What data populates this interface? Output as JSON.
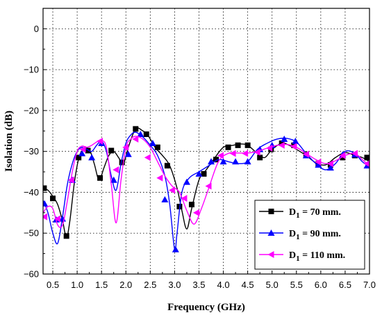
{
  "chart_data": {
    "type": "line",
    "xlabel": "Frequency (GHz)",
    "ylabel": "Isolation (dB)",
    "xlim": [
      0.3,
      7.0
    ],
    "ylim": [
      -60,
      5
    ],
    "xticks": [
      0.5,
      1.0,
      1.5,
      2.0,
      2.5,
      3.0,
      3.5,
      4.0,
      4.5,
      5.0,
      5.5,
      6.0,
      6.5,
      7.0
    ],
    "xtick_labels": [
      "0.5",
      "1.0",
      "1.5",
      "2.0",
      "2.5",
      "3.0",
      "3.5",
      "4.0",
      "4.5",
      "5.0",
      "5.5",
      "6.0",
      "6.5",
      "7.0"
    ],
    "yticks": [
      0,
      -10,
      -20,
      -30,
      -40,
      -50,
      -60
    ],
    "ytick_labels": [
      "0",
      "−10",
      "−20",
      "−30",
      "−40",
      "−50",
      "−60"
    ],
    "grid": true,
    "legend_position": "bottom-right",
    "series": [
      {
        "name": "D1 = 70 mm.",
        "name_main": "D",
        "name_sub": "1",
        "name_rest": " = 70 mm.",
        "color": "#000000",
        "marker": "square",
        "x": [
          0.3,
          0.4,
          0.5,
          0.6,
          0.7,
          0.78,
          0.85,
          0.95,
          1.05,
          1.15,
          1.25,
          1.35,
          1.45,
          1.55,
          1.65,
          1.75,
          1.85,
          1.95,
          2.05,
          2.2,
          2.35,
          2.45,
          2.6,
          2.75,
          2.9,
          3.05,
          3.15,
          3.25,
          3.35,
          3.5,
          3.65,
          3.8,
          4.0,
          4.2,
          4.35,
          4.5,
          4.7,
          4.85,
          5.0,
          5.2,
          5.35,
          5.5,
          5.7,
          5.9,
          6.1,
          6.3,
          6.5,
          6.7,
          6.85,
          7.0
        ],
        "y": [
          -39,
          -39.5,
          -41,
          -43,
          -47,
          -51,
          -47,
          -37,
          -31,
          -29.5,
          -29.5,
          -33,
          -37,
          -34,
          -31,
          -30,
          -31.5,
          -33,
          -29,
          -24.5,
          -25,
          -26,
          -29,
          -31,
          -33.5,
          -39,
          -44.5,
          -49,
          -44,
          -37,
          -34.5,
          -32,
          -29,
          -28.5,
          -28.2,
          -28.5,
          -30.5,
          -31.5,
          -29.5,
          -28,
          -28.5,
          -29.5,
          -31,
          -32.8,
          -33.3,
          -31.5,
          -30.3,
          -31,
          -31.5,
          -32.5
        ],
        "marker_x": [
          0.32,
          0.5,
          0.78,
          1.03,
          1.22,
          1.47,
          1.7,
          1.92,
          2.2,
          2.42,
          2.65,
          2.85,
          3.1,
          3.35,
          3.6,
          3.85,
          4.1,
          4.3,
          4.5,
          4.75,
          4.98,
          5.2,
          5.45,
          5.7,
          5.95,
          6.2,
          6.45,
          6.7,
          6.95
        ],
        "marker_y": [
          -39,
          -41.5,
          -50.7,
          -31.5,
          -29.8,
          -36.5,
          -29.8,
          -32.7,
          -24.5,
          -25.8,
          -29,
          -33.5,
          -43.5,
          -43,
          -35.5,
          -32,
          -29,
          -28.5,
          -28.5,
          -31.5,
          -29.5,
          -28,
          -28.5,
          -30.7,
          -33,
          -33.3,
          -31.5,
          -31,
          -31.5
        ]
      },
      {
        "name": "D1 = 90 mm.",
        "name_main": "D",
        "name_sub": "1",
        "name_rest": " = 90 mm.",
        "color": "#0000ff",
        "marker": "triangle-up",
        "x": [
          0.3,
          0.4,
          0.5,
          0.6,
          0.7,
          0.8,
          0.9,
          1.0,
          1.1,
          1.2,
          1.3,
          1.4,
          1.5,
          1.6,
          1.7,
          1.8,
          1.9,
          2.0,
          2.1,
          2.2,
          2.35,
          2.5,
          2.65,
          2.8,
          2.9,
          3.0,
          3.05,
          3.15,
          3.3,
          3.5,
          3.7,
          3.9,
          4.1,
          4.3,
          4.5,
          4.7,
          4.9,
          5.1,
          5.3,
          5.5,
          5.7,
          5.9,
          6.1,
          6.3,
          6.5,
          6.7,
          6.85,
          7.0
        ],
        "y": [
          -42,
          -45,
          -50,
          -52.5,
          -46,
          -38,
          -33,
          -30,
          -29,
          -29.5,
          -30,
          -28.5,
          -27.5,
          -30,
          -36,
          -39.5,
          -33,
          -28,
          -26,
          -25.3,
          -26.5,
          -28.5,
          -31,
          -36,
          -43,
          -54,
          -50,
          -40,
          -36.5,
          -35,
          -33.5,
          -32,
          -32.5,
          -33,
          -32.5,
          -29.5,
          -28,
          -27,
          -26.8,
          -27.7,
          -30.5,
          -33,
          -34.5,
          -33,
          -30,
          -30.5,
          -32.5,
          -33.7
        ],
        "marker_x": [
          0.33,
          0.57,
          0.7,
          0.9,
          1.1,
          1.3,
          1.5,
          1.75,
          2.05,
          2.3,
          2.55,
          2.8,
          3.02,
          3.25,
          3.5,
          3.75,
          4.0,
          4.25,
          4.5,
          4.75,
          5.0,
          5.25,
          5.48,
          5.7,
          5.95,
          6.2,
          6.45,
          6.7,
          6.95
        ],
        "marker_y": [
          -42.8,
          -46.7,
          -46.5,
          -37,
          -30.5,
          -31.5,
          -28,
          -37,
          -30.7,
          -25.8,
          -28,
          -41.8,
          -54,
          -37.5,
          -35.5,
          -32.5,
          -32.5,
          -32.5,
          -32.5,
          -29.5,
          -28.5,
          -27,
          -27.5,
          -31,
          -33.3,
          -34,
          -30.8,
          -30.8,
          -33.5
        ]
      },
      {
        "name": "D1 = 110 mm.",
        "name_main": "D",
        "name_sub": "1",
        "name_rest": " = 110 mm.",
        "color": "#ff00ff",
        "marker": "triangle-left",
        "x": [
          0.3,
          0.4,
          0.5,
          0.6,
          0.7,
          0.8,
          0.9,
          1.0,
          1.1,
          1.2,
          1.3,
          1.4,
          1.5,
          1.6,
          1.7,
          1.8,
          1.9,
          2.0,
          2.1,
          2.2,
          2.35,
          2.5,
          2.65,
          2.8,
          2.95,
          3.1,
          3.25,
          3.4,
          3.55,
          3.7,
          3.9,
          4.1,
          4.3,
          4.5,
          4.7,
          4.9,
          5.1,
          5.3,
          5.5,
          5.7,
          5.9,
          6.1,
          6.3,
          6.5,
          6.7,
          6.85,
          7.0
        ],
        "y": [
          -45,
          -43.5,
          -44,
          -48,
          -48,
          -42,
          -35,
          -30,
          -28.7,
          -29,
          -28.5,
          -27.7,
          -27.3,
          -29,
          -38,
          -47.5,
          -37,
          -29,
          -27,
          -26.3,
          -27,
          -29,
          -32.5,
          -36,
          -38.5,
          -40,
          -44.5,
          -47.8,
          -44,
          -39,
          -32.5,
          -30.5,
          -30.4,
          -30.4,
          -30,
          -29.2,
          -28.5,
          -28.3,
          -29,
          -30.5,
          -32,
          -33,
          -32.3,
          -31,
          -30.5,
          -32,
          -33.5
        ],
        "marker_x": [
          0.33,
          0.6,
          0.88,
          1.12,
          1.47,
          1.8,
          2.0,
          2.2,
          2.45,
          2.7,
          2.95,
          3.2,
          3.45,
          3.7,
          3.95,
          4.2,
          4.45,
          4.7,
          4.95,
          5.2,
          5.45,
          5.7,
          5.95,
          6.2,
          6.45,
          6.7,
          6.95
        ],
        "marker_y": [
          -46,
          -46.5,
          -37,
          -29.5,
          -27.5,
          -34.5,
          -29,
          -27,
          -31.5,
          -36.5,
          -39.5,
          -41.5,
          -45,
          -38.5,
          -31,
          -30.5,
          -30.5,
          -30.2,
          -29.2,
          -28.5,
          -28.8,
          -30.7,
          -32.6,
          -33,
          -31,
          -30.5,
          -33
        ]
      }
    ]
  }
}
